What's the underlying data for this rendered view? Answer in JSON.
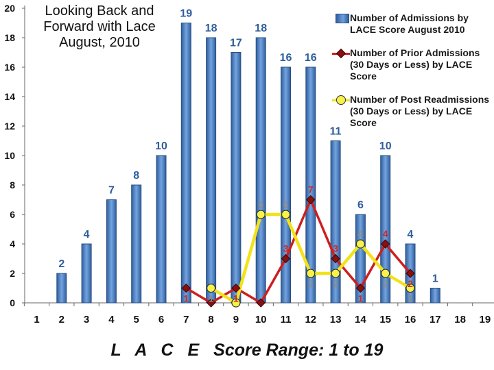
{
  "chart_data": {
    "type": "bar+line",
    "title": "Looking Back and Forward with Lace August, 2010",
    "xlabel_prefix": "L A C E",
    "xlabel": "Score Range: 1 to 19",
    "x": [
      1,
      2,
      3,
      4,
      5,
      6,
      7,
      8,
      9,
      10,
      11,
      12,
      13,
      14,
      15,
      16,
      17,
      18,
      19
    ],
    "ylim": [
      0,
      20
    ],
    "yticks": [
      0,
      2,
      4,
      6,
      8,
      10,
      12,
      14,
      16,
      18,
      20
    ],
    "grid": false,
    "legend_position": "top-right",
    "series": [
      {
        "name": "Number of Admissions by LACE Score August 2010",
        "kind": "bar",
        "color": "#4a7ebf",
        "values": [
          null,
          2,
          4,
          7,
          8,
          10,
          19,
          18,
          17,
          18,
          16,
          16,
          11,
          6,
          10,
          4,
          1,
          null,
          null
        ]
      },
      {
        "name": "Number of Prior Admissions (30 Days or Less) by LACE Score",
        "kind": "line",
        "color": "#cc1f1f",
        "values": [
          null,
          null,
          null,
          null,
          null,
          null,
          1,
          0,
          1,
          0,
          3,
          7,
          3,
          1,
          4,
          2,
          null,
          null,
          null
        ],
        "labels": [
          null,
          null,
          null,
          null,
          null,
          null,
          "1",
          "",
          "1",
          "",
          "3",
          "7",
          "3",
          "1",
          "4",
          "2",
          null,
          null,
          null
        ]
      },
      {
        "name": "Number of Post Readmissions (30 Days or Less) by LACE Score",
        "kind": "line",
        "color": "#f2e21a",
        "values": [
          null,
          null,
          null,
          null,
          null,
          null,
          null,
          1,
          0,
          6,
          6,
          2,
          2,
          4,
          2,
          1,
          null,
          null,
          null
        ],
        "labels": [
          null,
          null,
          null,
          null,
          null,
          null,
          null,
          "1",
          "",
          "6",
          "6",
          "2",
          "2",
          "4",
          "2",
          "1",
          null,
          null,
          null
        ]
      }
    ],
    "legend": [
      {
        "line1": "Number of Admissions by",
        "line2": "LACE Score August 2010"
      },
      {
        "line1": "Number of Prior Admissions",
        "line2": "(30 Days or Less) by LACE Score"
      },
      {
        "line1": "Number of Post Readmissions",
        "line2": "(30 Days or Less) by LACE Score"
      }
    ]
  }
}
